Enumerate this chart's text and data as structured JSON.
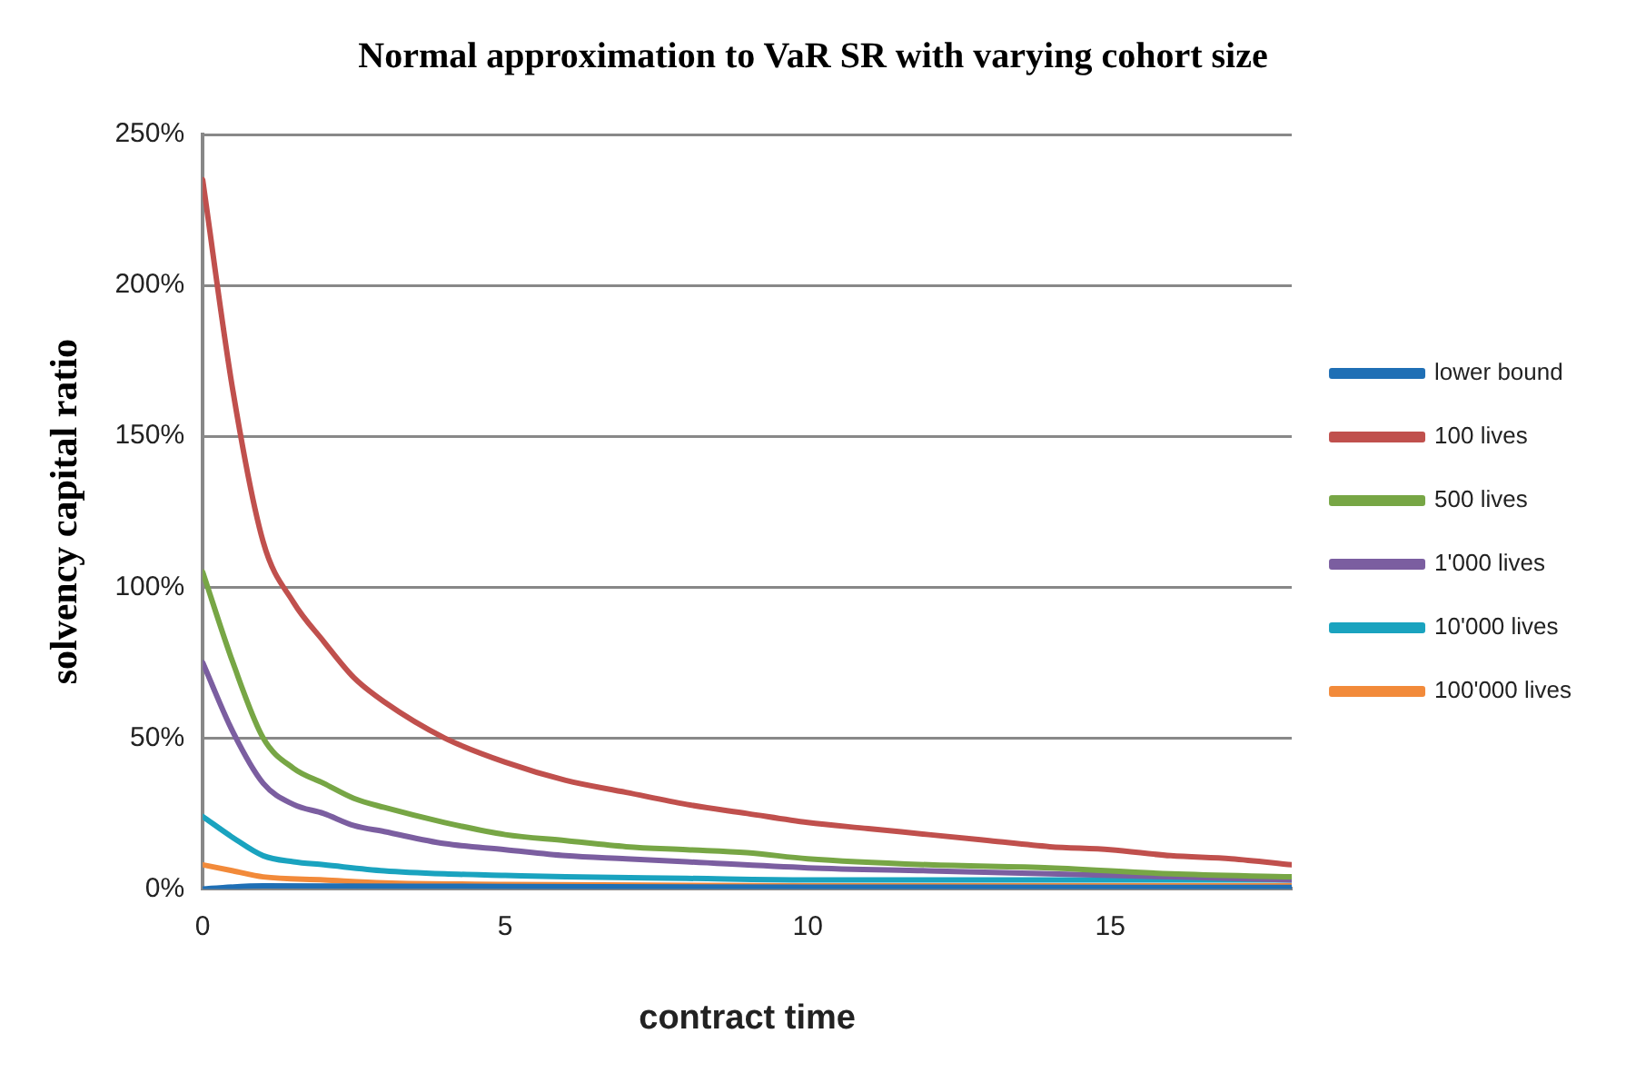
{
  "chart_data": {
    "type": "line",
    "title": "Normal approximation to VaR SR with varying cohort size",
    "xlabel": "contract time",
    "ylabel": "solvency capital ratio",
    "xlim": [
      0,
      18
    ],
    "xticks": [
      0,
      5,
      10,
      15
    ],
    "ylim": [
      0,
      250
    ],
    "yticks": [
      {
        "value": 0,
        "label": "0%"
      },
      {
        "value": 50,
        "label": "50%"
      },
      {
        "value": 100,
        "label": "100%"
      },
      {
        "value": 150,
        "label": "150%"
      },
      {
        "value": 200,
        "label": "200%"
      },
      {
        "value": 250,
        "label": "250%"
      }
    ],
    "grid": "y",
    "legend": "right",
    "marker": "none",
    "line_style": "solid",
    "series": [
      {
        "name": "lower bound",
        "color": "#1f6fb5",
        "x": [
          0,
          1,
          5,
          10,
          18
        ],
        "values": [
          0,
          1,
          0.8,
          0.6,
          0.5
        ]
      },
      {
        "name": "100 lives",
        "color": "#c0504d",
        "x": [
          0,
          0.5,
          1,
          1.5,
          2,
          2.5,
          3,
          4,
          5,
          6,
          7,
          8,
          9,
          10,
          11,
          12,
          13,
          14,
          15,
          16,
          17,
          18
        ],
        "values": [
          235,
          165,
          115,
          95,
          82,
          70,
          62,
          50,
          42,
          36,
          32,
          28,
          25,
          22,
          20,
          18,
          16,
          14,
          13,
          11,
          10,
          8
        ]
      },
      {
        "name": "500 lives",
        "color": "#77a645",
        "x": [
          0,
          0.5,
          1,
          1.5,
          2,
          2.5,
          3,
          4,
          5,
          6,
          7,
          8,
          9,
          10,
          12,
          14,
          16,
          18
        ],
        "values": [
          105,
          75,
          50,
          40,
          35,
          30,
          27,
          22,
          18,
          16,
          14,
          13,
          12,
          10,
          8,
          7,
          5,
          4
        ]
      },
      {
        "name": "1'000 lives",
        "color": "#7b5ea0",
        "x": [
          0,
          0.5,
          1,
          1.5,
          2,
          2.5,
          3,
          4,
          5,
          6,
          7,
          8,
          10,
          12,
          14,
          16,
          18
        ],
        "values": [
          75,
          52,
          35,
          28,
          25,
          21,
          19,
          15,
          13,
          11,
          10,
          9,
          7,
          6,
          5,
          4,
          3
        ]
      },
      {
        "name": "10'000 lives",
        "color": "#1aa3bf",
        "x": [
          0,
          0.5,
          1,
          1.5,
          2,
          3,
          4,
          5,
          6,
          8,
          10,
          14,
          18
        ],
        "values": [
          24,
          17,
          11,
          9,
          8,
          6,
          5,
          4.5,
          4,
          3.5,
          3,
          3,
          3
        ]
      },
      {
        "name": "100'000 lives",
        "color": "#f28a3a",
        "x": [
          0,
          0.5,
          1,
          2,
          3,
          5,
          10,
          18
        ],
        "values": [
          8,
          6,
          4,
          3,
          2,
          1.5,
          1,
          1
        ]
      }
    ]
  }
}
